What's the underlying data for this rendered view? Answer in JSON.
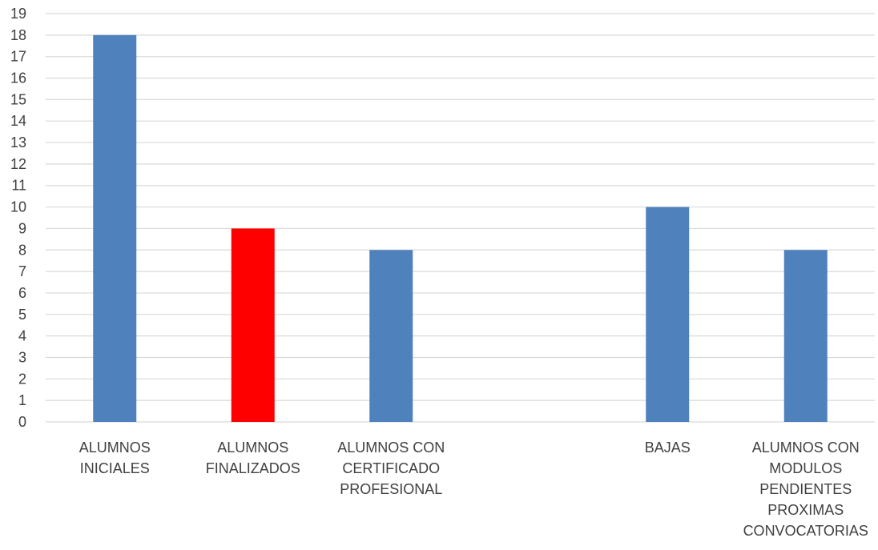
{
  "chart_data": {
    "type": "bar",
    "title": "",
    "xlabel": "",
    "ylabel": "",
    "ylim": [
      0,
      19
    ],
    "yticks": [
      0,
      1,
      2,
      3,
      4,
      5,
      6,
      7,
      8,
      9,
      10,
      11,
      12,
      13,
      14,
      15,
      16,
      17,
      18,
      19
    ],
    "grid": true,
    "legend": "none",
    "categories": [
      [
        "ALUMNOS",
        "INICIALES"
      ],
      [
        "ALUMNOS",
        "FINALIZADOS"
      ],
      [
        "ALUMNOS CON",
        "CERTIFICADO",
        "PROFESIONAL"
      ],
      [
        ""
      ],
      [
        "BAJAS"
      ],
      [
        "ALUMNOS CON",
        "MODULOS",
        "PENDIENTES",
        "PROXIMAS",
        "CONVOCATORIAS"
      ]
    ],
    "values": [
      18,
      9,
      8,
      null,
      10,
      8
    ],
    "bar_colors": [
      "#4f81bd",
      "#ff0000",
      "#4f81bd",
      "#4f81bd",
      "#4f81bd",
      "#4f81bd"
    ]
  }
}
